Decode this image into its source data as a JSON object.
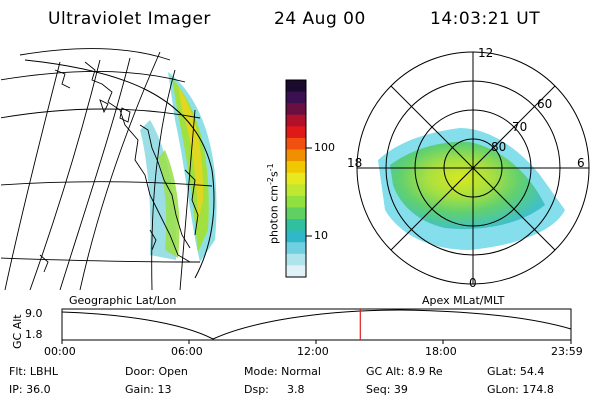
{
  "header": {
    "instrument": "Ultraviolet Imager",
    "date": "24 Aug 00",
    "time": "14:03:21 UT"
  },
  "colorbar": {
    "unit_label": "photon cm",
    "unit_sup1": "-2",
    "unit_s": "s",
    "unit_sup2": "-1",
    "tick_100": "100",
    "tick_10": "10",
    "colors": [
      "#1a0a2e",
      "#3a1050",
      "#6a1040",
      "#b0102a",
      "#e01818",
      "#f05010",
      "#f09000",
      "#f0c800",
      "#e8e820",
      "#c0e830",
      "#90e040",
      "#60d060",
      "#30c0a0",
      "#30b8c8",
      "#70d0e0",
      "#b0e4ec",
      "#e0f2f6"
    ]
  },
  "geo_panel": {
    "label": "Geographic Lat/Lon"
  },
  "polar_panel": {
    "label": "Apex MLat/MLT",
    "mlt_12": "12",
    "mlt_18": "18",
    "mlt_6": "6",
    "mlt_0": "0",
    "lat_60": "60",
    "lat_70": "70",
    "lat_80": "80"
  },
  "alt_plot": {
    "ylabel": "GC Alt",
    "ymax": "9.0",
    "ymin": "1.8",
    "x_ticks": [
      "00:00",
      "06:00",
      "12:00",
      "18:00",
      "23:59"
    ],
    "current_time_fraction": 0.586,
    "marker_color": "#e02020"
  },
  "footer": {
    "flt": "Flt: LBHL",
    "ip": "IP: 36.0",
    "door": "Door: Open",
    "gain": "Gain: 13",
    "mode": "Mode: Normal",
    "dsp_label": "Dsp:",
    "dsp_value": "3.8",
    "gc_alt": "GC Alt: 8.9 Re",
    "seq": "Seq: 39",
    "glat": "GLat:  54.4",
    "glon": "GLon: 174.8"
  }
}
